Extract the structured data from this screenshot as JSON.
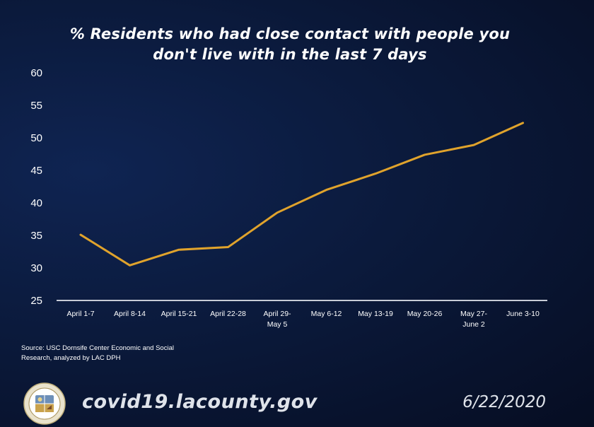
{
  "chart_data": {
    "type": "line",
    "title_lines": [
      "% Residents who had close contact with people you",
      "don't live with in the last 7 days"
    ],
    "categories": [
      [
        "April 1-7"
      ],
      [
        "April 8-14"
      ],
      [
        "April 15-21"
      ],
      [
        "April 22-28"
      ],
      [
        "April 29-",
        "May 5"
      ],
      [
        "May 6-12"
      ],
      [
        "May 13-19"
      ],
      [
        "May 20-26"
      ],
      [
        "May 27-",
        "June 2"
      ],
      [
        "June 3-10"
      ]
    ],
    "values": [
      35.1,
      30.4,
      32.8,
      33.2,
      38.5,
      42.0,
      44.5,
      47.4,
      48.9,
      52.3
    ],
    "yticks": [
      25,
      30,
      35,
      40,
      45,
      50,
      55,
      60
    ],
    "ylim": [
      25,
      60
    ],
    "line_color": "#e0a32c",
    "axis_color": "#c8ccd6",
    "grid": false,
    "legend": "none"
  },
  "footer": {
    "source": "Source: USC Dornsife Center Economic and Social Research, analyzed by LAC DPH",
    "website": "covid19.lacounty.gov",
    "date": "6/22/2020",
    "seal_icon": "county-seal-icon"
  }
}
